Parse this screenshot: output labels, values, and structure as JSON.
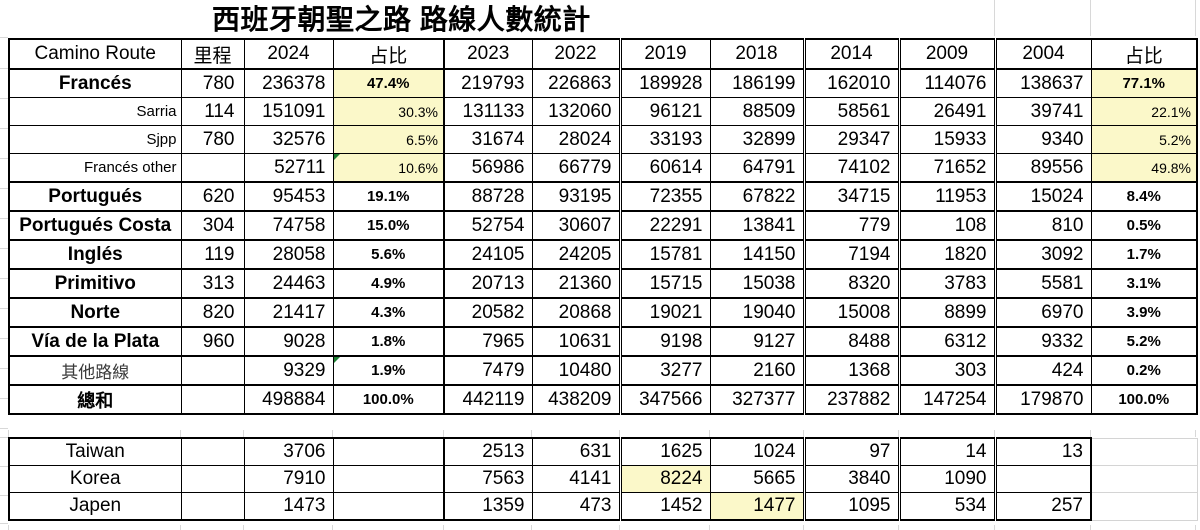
{
  "title": "西班牙朝聖之路 路線人數統計",
  "columns": [
    "Camino Route",
    "里程",
    "2024",
    "占比",
    "2023",
    "2022",
    "2019",
    "2018",
    "2014",
    "2009",
    "2004",
    "占比"
  ],
  "highlight_color": "#FBF8C9",
  "triangle_color": "#1C8032",
  "main_rows": [
    {
      "label": "Francés",
      "style": "main",
      "km": "780",
      "pct1": "47.4%",
      "pct2": "77.1%",
      "highlighted": true,
      "triangle": false,
      "values": [
        "236378",
        "219793",
        "226863",
        "189928",
        "186199",
        "162010",
        "114076",
        "138637"
      ]
    },
    {
      "label": "Sarria",
      "style": "sub",
      "km": "114",
      "pct1": "30.3%",
      "pct2": "22.1%",
      "highlighted": true,
      "triangle": false,
      "values": [
        "151091",
        "131133",
        "132060",
        "96121",
        "88509",
        "58561",
        "26491",
        "39741"
      ]
    },
    {
      "label": "Sjpp",
      "style": "sub",
      "km": "780",
      "pct1": "6.5%",
      "pct2": "5.2%",
      "highlighted": true,
      "triangle": false,
      "values": [
        "32576",
        "31674",
        "28024",
        "33193",
        "32899",
        "29347",
        "15933",
        "9340"
      ]
    },
    {
      "label": "Francés other",
      "style": "sub",
      "km": "",
      "pct1": "10.6%",
      "pct2": "49.8%",
      "highlighted": true,
      "triangle": true,
      "values": [
        "52711",
        "56986",
        "66779",
        "60614",
        "64791",
        "74102",
        "71652",
        "89556"
      ]
    },
    {
      "label": "Portugués",
      "style": "main",
      "km": "620",
      "pct1": "19.1%",
      "pct2": "8.4%",
      "highlighted": false,
      "triangle": false,
      "values": [
        "95453",
        "88728",
        "93195",
        "72355",
        "67822",
        "34715",
        "11953",
        "15024"
      ]
    },
    {
      "label": "Portugués Costa",
      "style": "main",
      "km": "304",
      "pct1": "15.0%",
      "pct2": "0.5%",
      "highlighted": false,
      "triangle": false,
      "values": [
        "74758",
        "52754",
        "30607",
        "22291",
        "13841",
        "779",
        "108",
        "810"
      ]
    },
    {
      "label": "Inglés",
      "style": "main",
      "km": "119",
      "pct1": "5.6%",
      "pct2": "1.7%",
      "highlighted": false,
      "triangle": false,
      "values": [
        "28058",
        "24105",
        "24205",
        "15781",
        "14150",
        "7194",
        "1820",
        "3092"
      ]
    },
    {
      "label": "Primitivo",
      "style": "main",
      "km": "313",
      "pct1": "4.9%",
      "pct2": "3.1%",
      "highlighted": false,
      "triangle": false,
      "values": [
        "24463",
        "20713",
        "21360",
        "15715",
        "15038",
        "8320",
        "3783",
        "5581"
      ]
    },
    {
      "label": "Norte",
      "style": "main",
      "km": "820",
      "pct1": "4.3%",
      "pct2": "3.9%",
      "highlighted": false,
      "triangle": false,
      "values": [
        "21417",
        "20582",
        "20868",
        "19021",
        "19040",
        "15008",
        "8899",
        "6970"
      ]
    },
    {
      "label": "Vía de la Plata",
      "style": "main",
      "km": "960",
      "pct1": "1.8%",
      "pct2": "5.2%",
      "highlighted": false,
      "triangle": false,
      "values": [
        "9028",
        "7965",
        "10631",
        "9198",
        "9127",
        "8488",
        "6312",
        "9332"
      ]
    },
    {
      "label": "其他路線",
      "style": "cjk",
      "km": "",
      "pct1": "1.9%",
      "pct2": "0.2%",
      "highlighted": false,
      "triangle": true,
      "values": [
        "9329",
        "7479",
        "10480",
        "3277",
        "2160",
        "1368",
        "303",
        "424"
      ]
    },
    {
      "label": "總和",
      "style": "total",
      "km": "",
      "pct1": "100.0%",
      "pct2": "100.0%",
      "highlighted": false,
      "triangle": false,
      "values": [
        "498884",
        "442119",
        "438209",
        "347566",
        "327377",
        "237882",
        "147254",
        "179870"
      ]
    }
  ],
  "bottom_rows": [
    {
      "label": "Taiwan",
      "values": [
        "3706",
        "2513",
        "631",
        "1625",
        "1024",
        "97",
        "14",
        "13"
      ],
      "highlight_index": null
    },
    {
      "label": "Korea",
      "values": [
        "7910",
        "7563",
        "4141",
        "8224",
        "5665",
        "3840",
        "1090",
        ""
      ],
      "highlight_index": 3
    },
    {
      "label": "Japen",
      "values": [
        "1473",
        "1359",
        "473",
        "1452",
        "1477",
        "1095",
        "534",
        "257"
      ],
      "highlight_index": 4
    }
  ]
}
